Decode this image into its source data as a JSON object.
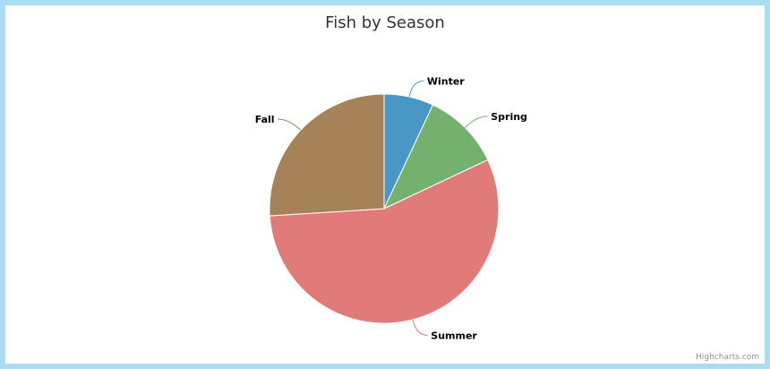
{
  "chart_data": {
    "type": "pie",
    "title": "Fish by Season",
    "categories": [
      "Winter",
      "Spring",
      "Summer",
      "Fall"
    ],
    "values": [
      7,
      11,
      56,
      26
    ],
    "colors": [
      "#4897c5",
      "#74b06e",
      "#e07b7a",
      "#a58257"
    ],
    "legend": "none",
    "data_labels": true
  },
  "credits": "Highcharts.com"
}
